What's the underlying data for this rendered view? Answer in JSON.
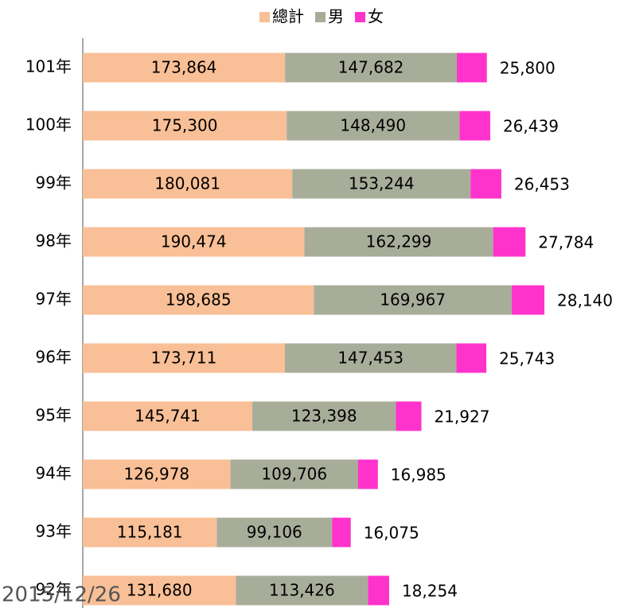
{
  "chart_data": {
    "type": "stacked_bar_horizontal",
    "categories": [
      "101年",
      "100年",
      "99年",
      "98年",
      "97年",
      "96年",
      "95年",
      "94年",
      "93年",
      "92年"
    ],
    "series": [
      {
        "name": "總計",
        "color": "#f9bf96",
        "values": [
          173864,
          175300,
          180081,
          190474,
          198685,
          173711,
          145741,
          126978,
          115181,
          131680
        ],
        "value_labels": [
          "173,864",
          "175,300",
          "180,081",
          "190,474",
          "198,685",
          "173,711",
          "145,741",
          "126,978",
          "115,181",
          "131,680"
        ]
      },
      {
        "name": "男",
        "color": "#a8ad9a",
        "values": [
          147682,
          148490,
          153244,
          162299,
          169967,
          147453,
          123398,
          109706,
          99106,
          113426
        ],
        "value_labels": [
          "147,682",
          "148,490",
          "153,244",
          "162,299",
          "169,967",
          "147,453",
          "123,398",
          "109,706",
          "99,106",
          "113,426"
        ]
      },
      {
        "name": "女",
        "color": "#ff33cc",
        "values": [
          25800,
          26439,
          26453,
          27784,
          28140,
          25743,
          21927,
          16985,
          16075,
          18254
        ],
        "value_labels": [
          "25,800",
          "26,439",
          "26,453",
          "27,784",
          "28,140",
          "25,743",
          "21,927",
          "16,985",
          "16,075",
          "18,254"
        ]
      }
    ],
    "annotations": [
      "2015/12/26"
    ]
  }
}
